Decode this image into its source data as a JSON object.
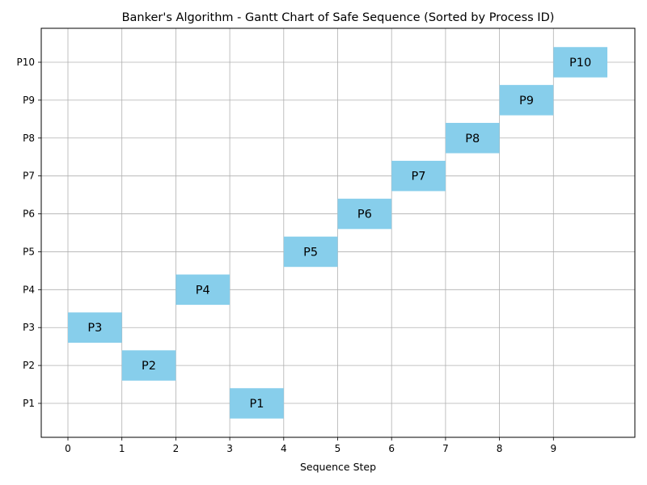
{
  "chart_data": {
    "type": "gantt",
    "title": "Banker's Algorithm - Gantt Chart of Safe Sequence (Sorted by Process ID)",
    "xlabel": "Sequence Step",
    "ylabel": "",
    "x_ticks": [
      0,
      1,
      2,
      3,
      4,
      5,
      6,
      7,
      8,
      9
    ],
    "y_categories": [
      "P1",
      "P2",
      "P3",
      "P4",
      "P5",
      "P6",
      "P7",
      "P8",
      "P9",
      "P10"
    ],
    "xlim": [
      -0.5,
      10.5
    ],
    "grid": true,
    "bar_color": "#87ceeb",
    "bars": [
      {
        "process": "P3",
        "start": 0,
        "duration": 1,
        "label": "P3"
      },
      {
        "process": "P2",
        "start": 1,
        "duration": 1,
        "label": "P2"
      },
      {
        "process": "P4",
        "start": 2,
        "duration": 1,
        "label": "P4"
      },
      {
        "process": "P1",
        "start": 3,
        "duration": 1,
        "label": "P1"
      },
      {
        "process": "P5",
        "start": 4,
        "duration": 1,
        "label": "P5"
      },
      {
        "process": "P6",
        "start": 5,
        "duration": 1,
        "label": "P6"
      },
      {
        "process": "P7",
        "start": 6,
        "duration": 1,
        "label": "P7"
      },
      {
        "process": "P8",
        "start": 7,
        "duration": 1,
        "label": "P8"
      },
      {
        "process": "P9",
        "start": 8,
        "duration": 1,
        "label": "P9"
      },
      {
        "process": "P10",
        "start": 9,
        "duration": 1,
        "label": "P10"
      }
    ]
  }
}
